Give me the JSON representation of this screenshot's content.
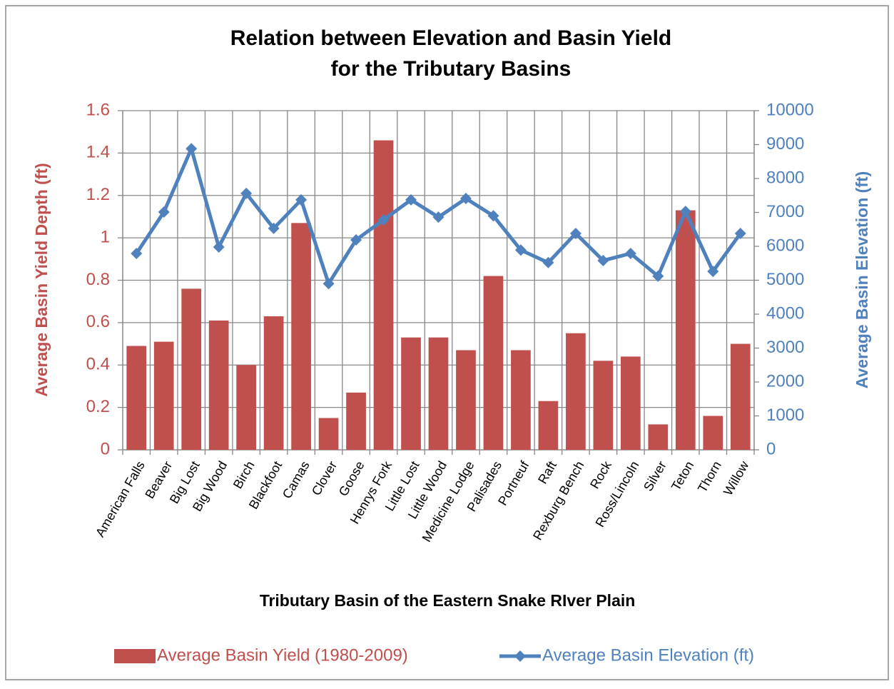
{
  "chart_data": {
    "type": "bar-line",
    "title": [
      "Relation between Elevation and Basin Yield",
      "for the Tributary Basins"
    ],
    "x_label": "Tributary Basin of the Eastern Snake RIver Plain",
    "y_label": "Average Basin Yield Depth (ft)",
    "y2_label": "Average Basin Elevation (ft)",
    "categories": [
      "American Falls",
      "Beaver",
      "Big Lost",
      "Big Wood",
      "Birch",
      "Blackfoot",
      "Camas",
      "Clover",
      "Goose",
      "Henrys Fork",
      "Little Lost",
      "Little Wood",
      "Medicine Lodge",
      "Palisades",
      "Portneuf",
      "Raft",
      "Rexburg Bench",
      "Rock",
      "Ross/Lincoln",
      "Silver",
      "Teton",
      "Thorn",
      "Willow"
    ],
    "series": [
      {
        "name": "Average Basin Yield (1980-2009)",
        "type": "bar",
        "color": "#c0504d",
        "values": [
          0.49,
          0.51,
          0.76,
          0.61,
          0.4,
          0.63,
          1.07,
          0.15,
          0.27,
          1.46,
          0.53,
          0.53,
          0.47,
          0.82,
          0.47,
          0.23,
          0.55,
          0.42,
          0.44,
          0.12,
          1.13,
          0.16,
          0.5
        ]
      },
      {
        "name": "Average Basin Elevation (ft)",
        "type": "line",
        "axis": "y2",
        "color": "#4f81bd",
        "values": [
          5790,
          7010,
          8880,
          5980,
          7560,
          6530,
          7370,
          4900,
          6190,
          6780,
          7370,
          6860,
          7410,
          6900,
          5890,
          5520,
          6380,
          5580,
          5790,
          5120,
          7030,
          5260,
          6380
        ]
      }
    ],
    "ylim": [
      0,
      1.6
    ],
    "yticks": [
      0,
      0.2,
      0.4,
      0.6,
      0.8,
      1,
      1.2,
      1.4,
      1.6
    ],
    "y2lim": [
      0,
      10000
    ],
    "y2ticks": [
      0,
      1000,
      2000,
      3000,
      4000,
      5000,
      6000,
      7000,
      8000,
      9000,
      10000
    ],
    "grid": true,
    "legend": "bottom"
  }
}
